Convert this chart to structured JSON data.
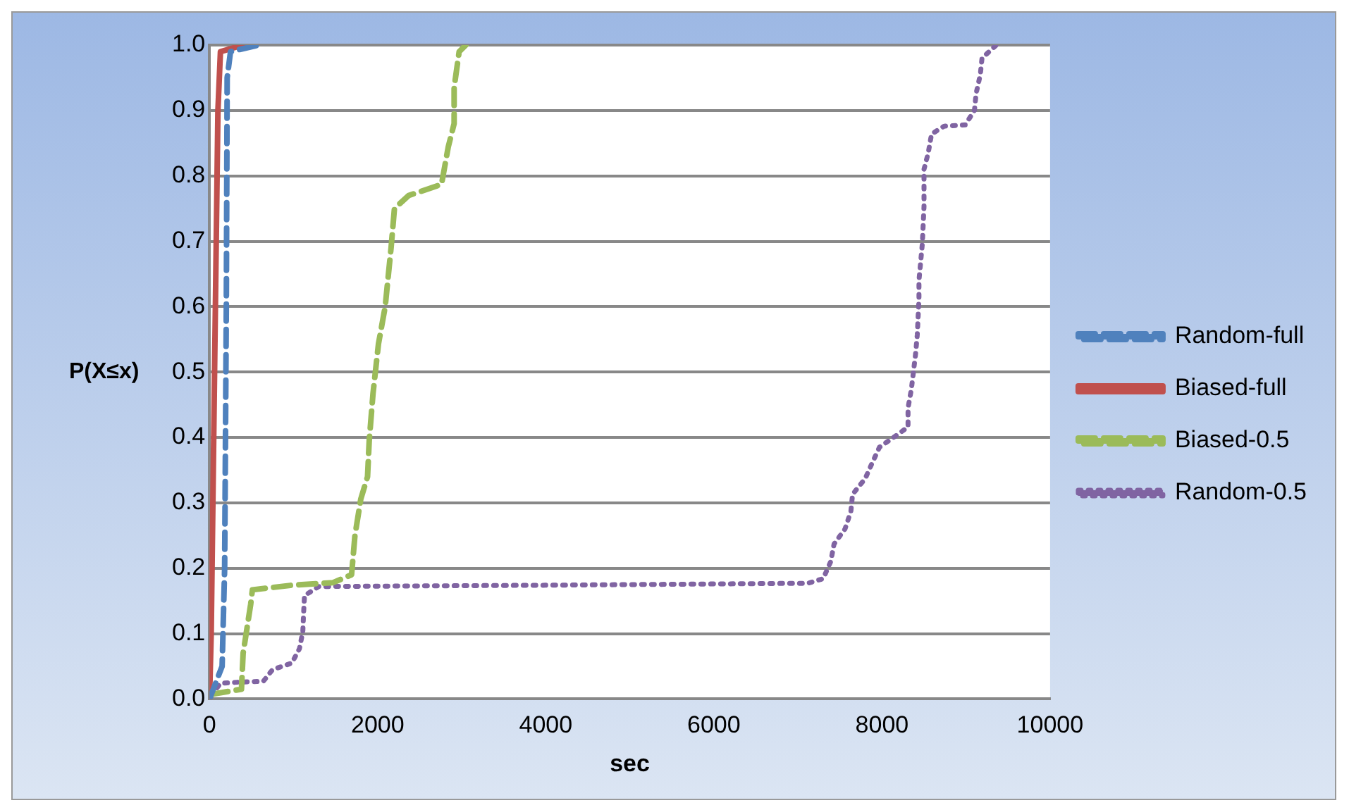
{
  "chart_data": {
    "type": "line",
    "xlabel": "sec",
    "ylabel": "P(X≤x)",
    "xlim": [
      0,
      10000
    ],
    "xticks": [
      0,
      2000,
      4000,
      6000,
      8000,
      10000
    ],
    "ylim": [
      0,
      1
    ],
    "yticks": [
      {
        "value": 0,
        "label": "0.0"
      },
      0.1,
      0.2,
      0.3,
      0.4,
      0.5,
      0.6,
      0.7,
      0.8,
      0.9,
      {
        "value": 1,
        "label": "1.0"
      }
    ],
    "grid": "y",
    "legend": "right",
    "marker": "none",
    "series": [
      {
        "name": "Random-full",
        "color": "#4f81bd",
        "line_style": "dashed",
        "x": [
          0,
          150,
          180,
          200,
          210,
          250,
          580
        ],
        "values": [
          0,
          0.05,
          0.2,
          0.6,
          0.95,
          0.99,
          1.0
        ]
      },
      {
        "name": "Biased-full",
        "color": "#c0504d",
        "line_style": "solid",
        "x": [
          0,
          20,
          60,
          100,
          130,
          400
        ],
        "values": [
          0,
          0.1,
          0.5,
          0.9,
          0.99,
          1.0
        ]
      },
      {
        "name": "Biased-0.5",
        "color": "#9bbb59",
        "line_style": "dashed",
        "x": [
          20,
          380,
          400,
          490,
          510,
          980,
          1470,
          1690,
          1730,
          1800,
          1880,
          1900,
          1945,
          2010,
          2090,
          2160,
          2200,
          2370,
          2760,
          2840,
          2910,
          2910,
          2970,
          3050
        ],
        "values": [
          0.007,
          0.015,
          0.07,
          0.145,
          0.167,
          0.174,
          0.178,
          0.19,
          0.25,
          0.306,
          0.34,
          0.395,
          0.467,
          0.543,
          0.6,
          0.69,
          0.75,
          0.77,
          0.787,
          0.844,
          0.88,
          0.935,
          0.99,
          1.0
        ]
      },
      {
        "name": "Random-0.5",
        "color": "#8064a2",
        "line_style": "dotted",
        "x": [
          20,
          130,
          380,
          640,
          750,
          980,
          1070,
          1110,
          1120,
          1130,
          1300,
          4000,
          7120,
          7300,
          7390,
          7430,
          7560,
          7630,
          7650,
          7800,
          7880,
          7970,
          8160,
          8310,
          8310,
          8350,
          8400,
          8420,
          8440,
          8440,
          8480,
          8500,
          8500,
          8550,
          8590,
          8740,
          8990,
          9100,
          9120,
          9170,
          9190,
          9360
        ],
        "values": [
          0.005,
          0.024,
          0.026,
          0.027,
          0.045,
          0.055,
          0.077,
          0.103,
          0.133,
          0.158,
          0.172,
          0.174,
          0.177,
          0.184,
          0.21,
          0.237,
          0.26,
          0.287,
          0.313,
          0.337,
          0.36,
          0.385,
          0.402,
          0.416,
          0.445,
          0.474,
          0.528,
          0.557,
          0.612,
          0.64,
          0.696,
          0.753,
          0.81,
          0.835,
          0.864,
          0.876,
          0.878,
          0.9,
          0.926,
          0.955,
          0.98,
          1.0
        ]
      }
    ]
  }
}
